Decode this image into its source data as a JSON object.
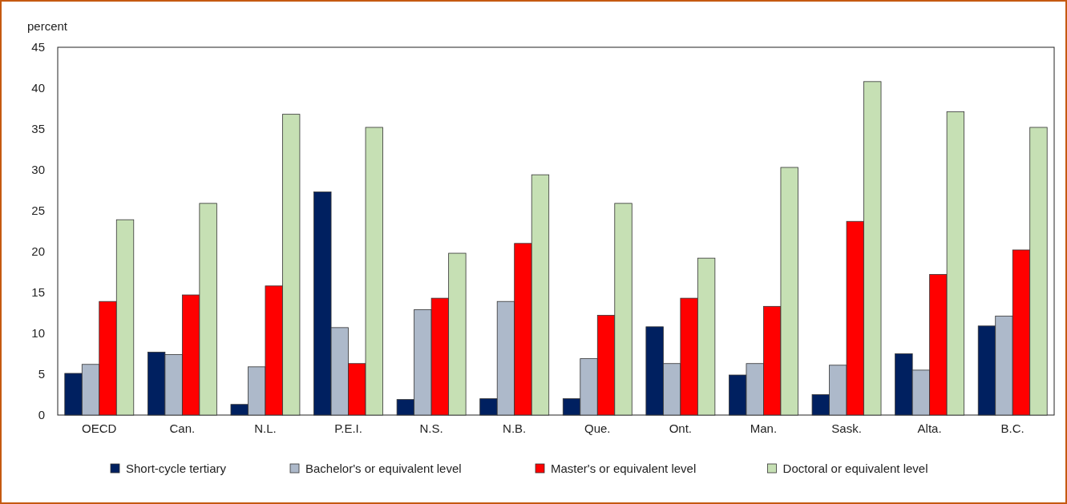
{
  "chart_data": {
    "type": "bar",
    "ylabel": "percent",
    "categories": [
      "OECD",
      "Can.",
      "N.L.",
      "P.E.I.",
      "N.S.",
      "N.B.",
      "Que.",
      "Ont.",
      "Man.",
      "Sask.",
      "Alta.",
      "B.C."
    ],
    "series": [
      {
        "name": "Short-cycle tertiary",
        "color": "#002060",
        "values": [
          5.1,
          7.7,
          1.3,
          27.3,
          1.9,
          2.0,
          2.0,
          10.8,
          4.9,
          2.5,
          7.5,
          10.9
        ]
      },
      {
        "name": "Bachelor's or equivalent level",
        "color": "#adb9ca",
        "values": [
          6.2,
          7.4,
          5.9,
          10.7,
          12.9,
          13.9,
          6.9,
          6.3,
          6.3,
          6.1,
          5.5,
          12.1
        ]
      },
      {
        "name": "Master's or equivalent level",
        "color": "#ff0000",
        "values": [
          13.9,
          14.7,
          15.8,
          6.3,
          14.3,
          21.0,
          12.2,
          14.3,
          13.3,
          23.7,
          17.2,
          20.2
        ]
      },
      {
        "name": "Doctoral or equivalent level",
        "color": "#c6e0b4",
        "values": [
          23.9,
          25.9,
          36.8,
          35.2,
          19.8,
          29.4,
          25.9,
          19.2,
          30.3,
          40.8,
          37.1,
          35.2
        ]
      }
    ],
    "ylim": [
      0,
      45
    ],
    "yticks": [
      0,
      5,
      10,
      15,
      20,
      25,
      30,
      35,
      40,
      45
    ],
    "grid": false,
    "legend": "bottom"
  }
}
